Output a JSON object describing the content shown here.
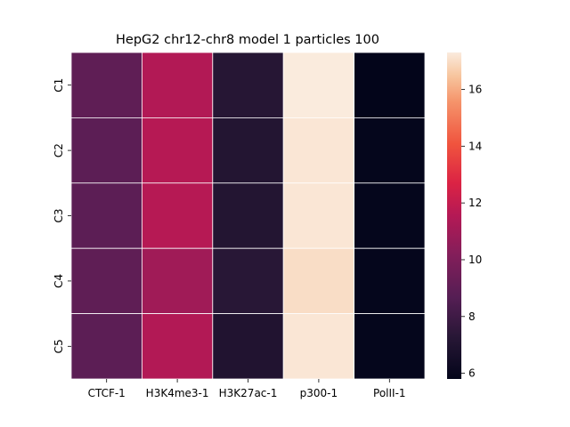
{
  "chart_data": {
    "type": "heatmap",
    "title": "HepG2 chr12-chr8 model 1 particles 100",
    "x_categories": [
      "CTCF-1",
      "H3K4me3-1",
      "H3K27ac-1",
      "p300-1",
      "PolII-1"
    ],
    "y_categories": [
      "C1",
      "C2",
      "C3",
      "C4",
      "C5"
    ],
    "values": [
      [
        9.0,
        11.5,
        7.2,
        17.3,
        5.8
      ],
      [
        8.9,
        11.6,
        7.1,
        17.2,
        5.9
      ],
      [
        8.9,
        11.6,
        7.1,
        17.2,
        5.9
      ],
      [
        9.0,
        11.0,
        7.3,
        17.0,
        5.9
      ],
      [
        8.9,
        11.5,
        7.0,
        17.2,
        5.9
      ]
    ],
    "colorbar": {
      "range": [
        5.8,
        17.3
      ],
      "ticks": [
        6,
        8,
        10,
        12,
        14,
        16
      ],
      "colormap": "rocket"
    },
    "cell_border_color": "#ffffff"
  }
}
